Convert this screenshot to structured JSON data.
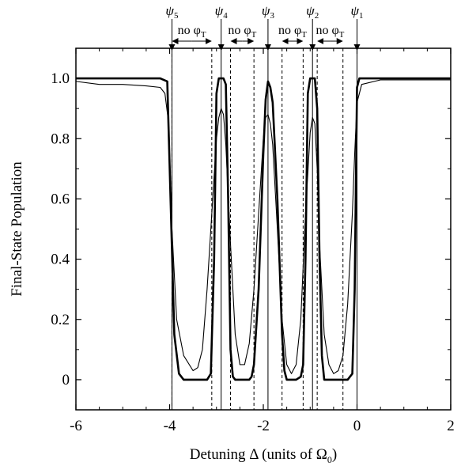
{
  "chart_data": {
    "type": "line",
    "title": "",
    "xlabel": "Detuning Δ (units of Ω",
    "xlabel_sub": "0",
    "xlabel_tail": ")",
    "ylabel": "Final-State Population",
    "xlim": [
      -6,
      2
    ],
    "ylim": [
      -0.1,
      1.1
    ],
    "grid": false,
    "x_ticks": [
      -6,
      -4,
      -2,
      0,
      2
    ],
    "x_tick_labels": [
      "-6",
      "-4",
      "-2",
      "0",
      "2"
    ],
    "y_ticks": [
      0,
      0.2,
      0.4,
      0.6,
      0.8,
      1.0
    ],
    "y_tick_labels": [
      "0",
      "0.2",
      "0.4",
      "0.6",
      "0.8",
      "1.0"
    ],
    "resonances": [
      {
        "label": "ψ",
        "sub": "1",
        "x": 0.0
      },
      {
        "label": "ψ",
        "sub": "2",
        "x": -0.95
      },
      {
        "label": "ψ",
        "sub": "3",
        "x": -1.9
      },
      {
        "label": "ψ",
        "sub": "4",
        "x": -2.9
      },
      {
        "label": "ψ",
        "sub": "5",
        "x": -3.95
      }
    ],
    "no_phi_regions": [
      {
        "label": "no φ",
        "sub": "T",
        "x_start": -3.95,
        "x_end": -3.1
      },
      {
        "label": "no φ",
        "sub": "T",
        "x_start": -2.7,
        "x_end": -2.2
      },
      {
        "label": "no φ",
        "sub": "T",
        "x_start": -1.6,
        "x_end": -1.15
      },
      {
        "label": "no φ",
        "sub": "T",
        "x_start": -0.85,
        "x_end": -0.3
      }
    ],
    "dashed_lines_x": [
      -3.95,
      -3.1,
      -2.7,
      -2.2,
      -1.6,
      -1.15,
      -0.85,
      -0.3
    ],
    "series": [
      {
        "style": "thick",
        "x": [
          -6.0,
          -5.0,
          -4.2,
          -4.05,
          -3.98,
          -3.9,
          -3.8,
          -3.7,
          -3.6,
          -3.5,
          -3.4,
          -3.3,
          -3.2,
          -3.12,
          -3.05,
          -3.0,
          -2.95,
          -2.9,
          -2.85,
          -2.8,
          -2.75,
          -2.7,
          -2.65,
          -2.6,
          -2.5,
          -2.4,
          -2.3,
          -2.25,
          -2.2,
          -2.1,
          -2.0,
          -1.95,
          -1.9,
          -1.85,
          -1.8,
          -1.7,
          -1.6,
          -1.55,
          -1.5,
          -1.4,
          -1.3,
          -1.2,
          -1.15,
          -1.1,
          -1.05,
          -1.0,
          -0.95,
          -0.9,
          -0.85,
          -0.8,
          -0.75,
          -0.7,
          -0.6,
          -0.5,
          -0.4,
          -0.3,
          -0.2,
          -0.1,
          -0.05,
          0.0,
          0.05,
          0.5,
          1.0,
          1.5,
          2.0
        ],
        "y": [
          1.0,
          1.0,
          1.0,
          0.99,
          0.6,
          0.15,
          0.02,
          0.0,
          0.0,
          0.0,
          0.0,
          0.0,
          0.0,
          0.02,
          0.4,
          0.95,
          1.0,
          1.0,
          1.0,
          0.98,
          0.6,
          0.1,
          0.01,
          0.0,
          0.0,
          0.0,
          0.0,
          0.01,
          0.05,
          0.3,
          0.75,
          0.93,
          0.99,
          0.97,
          0.92,
          0.6,
          0.15,
          0.03,
          0.0,
          0.0,
          0.0,
          0.01,
          0.05,
          0.4,
          0.95,
          1.0,
          1.0,
          1.0,
          0.9,
          0.4,
          0.08,
          0.0,
          0.0,
          0.0,
          0.0,
          0.0,
          0.0,
          0.02,
          0.3,
          0.97,
          1.0,
          1.0,
          1.0,
          1.0,
          1.0
        ]
      },
      {
        "style": "thin",
        "x": [
          -6.0,
          -5.5,
          -5.0,
          -4.5,
          -4.2,
          -4.1,
          -4.02,
          -3.95,
          -3.85,
          -3.7,
          -3.5,
          -3.4,
          -3.3,
          -3.2,
          -3.1,
          -3.0,
          -2.95,
          -2.9,
          -2.85,
          -2.8,
          -2.7,
          -2.6,
          -2.5,
          -2.4,
          -2.3,
          -2.2,
          -2.1,
          -2.0,
          -1.95,
          -1.9,
          -1.85,
          -1.8,
          -1.7,
          -1.6,
          -1.5,
          -1.4,
          -1.3,
          -1.2,
          -1.1,
          -1.0,
          -0.95,
          -0.9,
          -0.85,
          -0.8,
          -0.7,
          -0.6,
          -0.5,
          -0.4,
          -0.3,
          -0.2,
          -0.1,
          -0.05,
          0.0,
          0.1,
          0.5,
          1.0,
          1.5,
          2.0
        ],
        "y": [
          0.99,
          0.98,
          0.98,
          0.975,
          0.97,
          0.95,
          0.85,
          0.5,
          0.2,
          0.08,
          0.03,
          0.04,
          0.1,
          0.3,
          0.55,
          0.8,
          0.87,
          0.9,
          0.88,
          0.78,
          0.45,
          0.15,
          0.05,
          0.05,
          0.12,
          0.3,
          0.55,
          0.8,
          0.87,
          0.88,
          0.85,
          0.78,
          0.5,
          0.2,
          0.05,
          0.02,
          0.05,
          0.2,
          0.55,
          0.82,
          0.87,
          0.85,
          0.7,
          0.45,
          0.15,
          0.05,
          0.02,
          0.03,
          0.08,
          0.25,
          0.55,
          0.75,
          0.92,
          0.98,
          0.995,
          0.995,
          0.995,
          0.995
        ]
      }
    ]
  }
}
